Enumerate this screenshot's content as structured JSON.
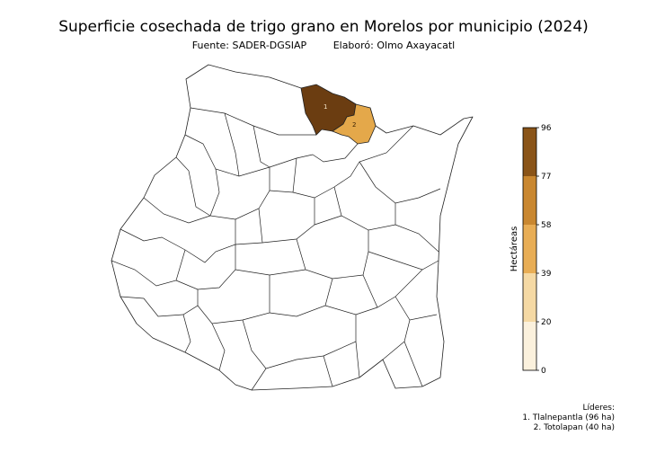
{
  "header": {
    "title": "Superficie cosechada de trigo grano en Morelos por municipio (2024)",
    "source": "Fuente: SADER-DGSIAP",
    "author": "Elaboró: Olmo Axayacatl"
  },
  "map": {
    "highlighted": [
      {
        "rank": "1",
        "name": "Tlalnepantla",
        "value": 96,
        "color": "#6b3d11"
      },
      {
        "rank": "2",
        "name": "Totolapan",
        "value": 40,
        "color": "#e4a84a"
      }
    ]
  },
  "legend": {
    "title": "Hectáreas",
    "ticks": [
      "0",
      "20",
      "39",
      "58",
      "77",
      "96"
    ],
    "colors": [
      "#fbf1dd",
      "#f5d9a4",
      "#e8ad55",
      "#c98730",
      "#a0601c",
      "#6b3d11"
    ]
  },
  "leaders": {
    "heading": "Líderes:",
    "items": [
      "1. Tlalnepantla (96 ha)",
      "2. Totolapan (40 ha)"
    ]
  }
}
